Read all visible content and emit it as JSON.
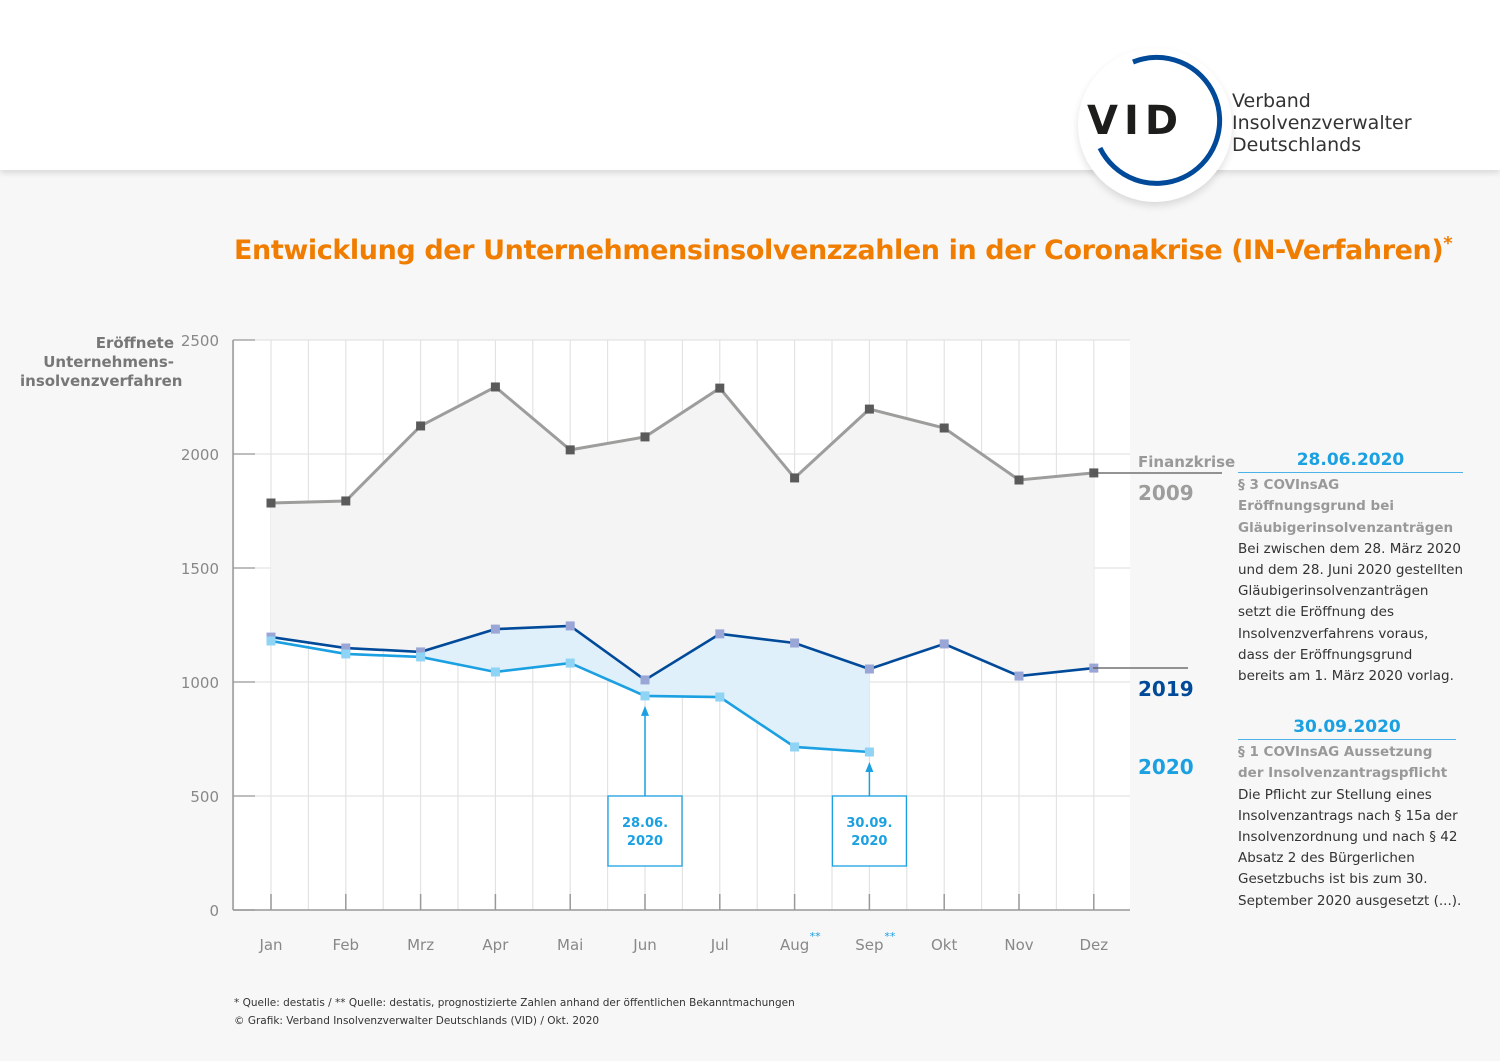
{
  "header": {
    "logo_text": "VID",
    "org_lines": [
      "Verband",
      "Insolvenzverwalter",
      "Deutschlands"
    ]
  },
  "title": "Entwicklung der Unternehmensinsolvenzzahlen in der Coronakrise (IN-Verfahren)",
  "title_asterisk": "*",
  "chart_data": {
    "type": "line",
    "title": "Entwicklung der Unternehmensinsolvenzzahlen in der Coronakrise (IN-Verfahren)*",
    "ylabel_lines": [
      "Eröffnete",
      "Unternehmens-",
      "insolvenzverfahren"
    ],
    "xlabel": "",
    "categories": [
      "Jan",
      "Feb",
      "Mrz",
      "Apr",
      "Mai",
      "Jun",
      "Jul",
      "Aug",
      "Sep",
      "Okt",
      "Nov",
      "Dez"
    ],
    "category_marks": [
      "",
      "",
      "",
      "",
      "",
      "",
      "",
      "**",
      "**",
      "",
      "",
      ""
    ],
    "ylim": [
      0,
      2500
    ],
    "yticks": [
      0,
      500,
      1000,
      1500,
      2000,
      2500
    ],
    "grid": true,
    "series": [
      {
        "name": "2009",
        "label_top": "Finanzkrise",
        "color": "#9d9d9c",
        "marker_color": "#5a5a5a",
        "values": [
          1785,
          1794,
          2123,
          2294,
          2018,
          2075,
          2289,
          1895,
          2197,
          2114,
          1886,
          1917
        ]
      },
      {
        "name": "2019",
        "color": "#004a99",
        "marker_color": "#9aa6d6",
        "values": [
          1197,
          1149,
          1132,
          1232,
          1246,
          1009,
          1211,
          1171,
          1057,
          1167,
          1026,
          1061
        ]
      },
      {
        "name": "2020",
        "color": "#1ba0e1",
        "marker_color": "#8fd3f5",
        "values": [
          1180,
          1123,
          1110,
          1044,
          1083,
          939,
          934,
          715,
          693,
          null,
          null,
          null
        ]
      }
    ],
    "annotations": [
      {
        "month": "Jun",
        "text_lines": [
          "28.06.",
          "2020"
        ]
      },
      {
        "month": "Sep",
        "text_lines": [
          "30.09.",
          "2020"
        ]
      }
    ]
  },
  "notes": [
    {
      "date": "28.06.2020",
      "heading": "§ 3 COVInsAG Eröffnungsgrund bei Gläubigerinsolvenzanträgen",
      "body": "Bei zwischen dem 28. März 2020 und dem 28. Juni 2020 gestellten Gläubigerinsolvenzanträgen setzt die Eröffnung des Insolvenzverfahrens voraus, dass der Eröffnungsgrund bereits am 1. März 2020 vorlag."
    },
    {
      "date": "30.09.2020",
      "heading": "§ 1 COVInsAG Aussetzung der Insolvenzantragspflicht",
      "body": "Die Pflicht zur Stellung eines Insolvenzantrags nach § 15a der Insolvenzordnung und nach § 42 Absatz 2 des Bürgerlichen Gesetzbuchs ist bis zum 30. September 2020 ausgesetzt (...)."
    }
  ],
  "footer": {
    "source": "* Quelle: destatis / ** Quelle: destatis, prognostizierte Zahlen anhand der öffentlichen Bekanntmachungen",
    "copyright": "© Grafik: Verband Insolvenzverwalter Deutschlands (VID) / Okt. 2020"
  }
}
